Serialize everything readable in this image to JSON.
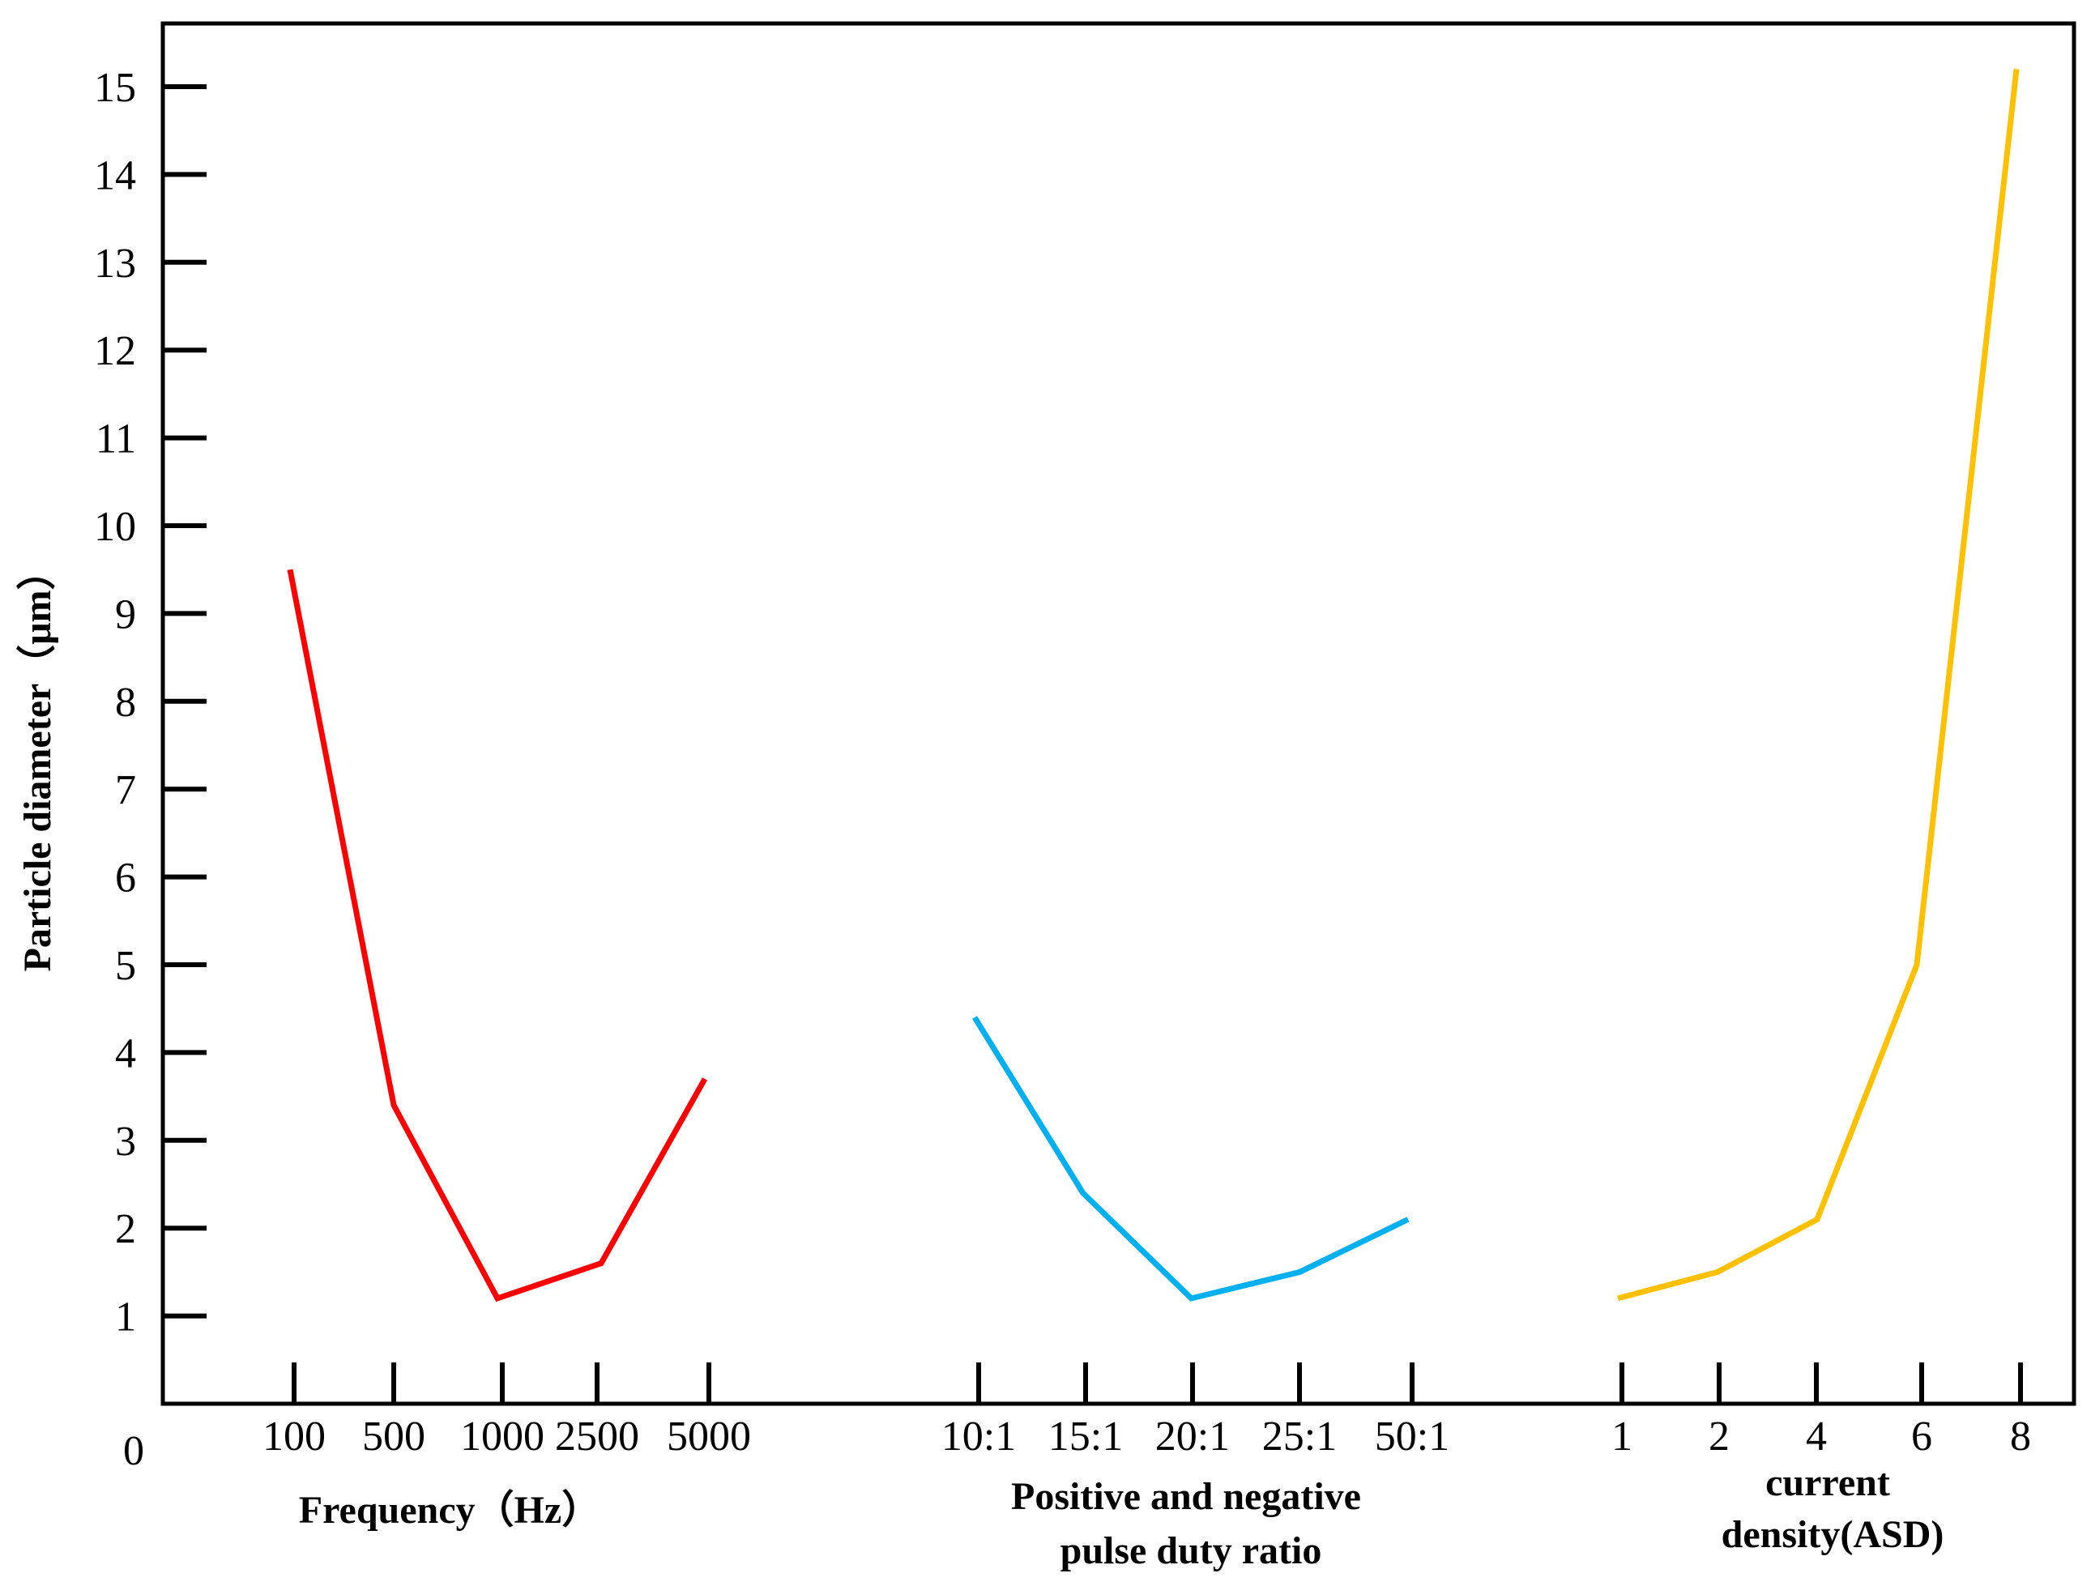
{
  "chart_data": {
    "type": "line",
    "ylabel": "Particle diameter（μm）",
    "y_origin_label": "0",
    "yticks": [
      1,
      2,
      3,
      4,
      5,
      6,
      7,
      8,
      9,
      10,
      11,
      12,
      13,
      14,
      15
    ],
    "ylim": [
      0,
      15.2
    ],
    "grid": false,
    "legend": "none",
    "panels": [
      {
        "xlabel": "Frequency（Hz）",
        "categories": [
          "100",
          "500",
          "1000",
          "2500",
          "5000"
        ],
        "series": [
          {
            "values": [
              9.5,
              3.4,
              1.2,
              1.6,
              3.7
            ],
            "color": "#ff0000"
          }
        ]
      },
      {
        "xlabel": "Positive and negative pulse duty ratio",
        "xlabel_lines": [
          "Positive and negative",
          "pulse duty ratio"
        ],
        "categories": [
          "10:1",
          "15:1",
          "20:1",
          "25:1",
          "50:1"
        ],
        "series": [
          {
            "values": [
              4.4,
              2.4,
              1.2,
              1.5,
              2.1
            ],
            "color": "#00b0f0"
          }
        ]
      },
      {
        "xlabel": "current density(ASD)",
        "xlabel_lines": [
          "current",
          "density(ASD)"
        ],
        "categories": [
          "1",
          "2",
          "4",
          "6",
          "8"
        ],
        "series": [
          {
            "values": [
              1.2,
              1.5,
              2.1,
              5.0,
              15.2
            ],
            "color": "#ffc000"
          }
        ]
      }
    ]
  }
}
